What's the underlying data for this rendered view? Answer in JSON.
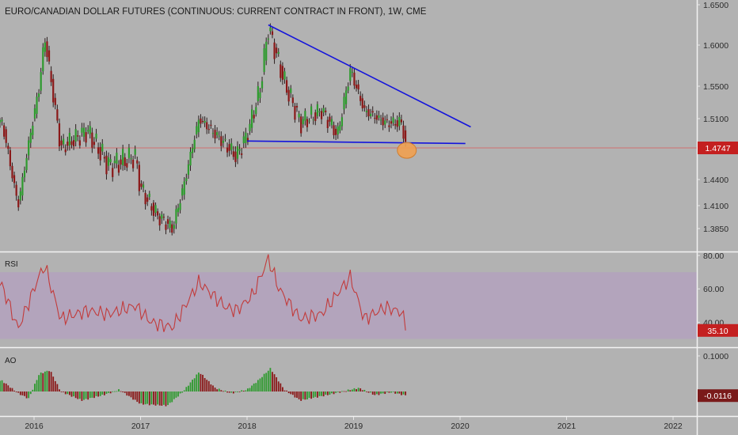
{
  "chart_data": {
    "type": "candlestick",
    "title": "EURO/CANADIAN DOLLAR FUTURES (CONTINUOUS: CURRENT CONTRACT IN FRONT), 1W, CME",
    "x_ticks": [
      "2016",
      "2017",
      "2018",
      "2019",
      "2020",
      "2021",
      "2022"
    ],
    "price": {
      "y_ticks": [
        "1.6500",
        "1.6000",
        "1.5500",
        "1.5100",
        "1.4400",
        "1.4100",
        "1.3850"
      ],
      "last_value": "1.4747",
      "key_points": [
        {
          "date": "2015.7",
          "value": 1.505
        },
        {
          "date": "2015.85",
          "value": 1.41
        },
        {
          "date": "2016.05",
          "value": 1.55
        },
        {
          "date": "2016.1",
          "value": 1.61
        },
        {
          "date": "2016.25",
          "value": 1.475
        },
        {
          "date": "2016.5",
          "value": 1.495
        },
        {
          "date": "2016.7",
          "value": 1.455
        },
        {
          "date": "2016.95",
          "value": 1.465
        },
        {
          "date": "2017.0",
          "value": 1.43
        },
        {
          "date": "2017.15",
          "value": 1.4
        },
        {
          "date": "2017.3",
          "value": 1.385
        },
        {
          "date": "2017.4",
          "value": 1.43
        },
        {
          "date": "2017.55",
          "value": 1.51
        },
        {
          "date": "2017.75",
          "value": 1.485
        },
        {
          "date": "2017.9",
          "value": 1.465
        },
        {
          "date": "2018.0",
          "value": 1.49
        },
        {
          "date": "2018.12",
          "value": 1.545
        },
        {
          "date": "2018.2",
          "value": 1.622
        },
        {
          "date": "2018.35",
          "value": 1.555
        },
        {
          "date": "2018.5",
          "value": 1.505
        },
        {
          "date": "2018.7",
          "value": 1.52
        },
        {
          "date": "2018.85",
          "value": 1.49
        },
        {
          "date": "2018.97",
          "value": 1.57
        },
        {
          "date": "2019.1",
          "value": 1.52
        },
        {
          "date": "2019.3",
          "value": 1.505
        },
        {
          "date": "2019.45",
          "value": 1.505
        },
        {
          "date": "2019.5",
          "value": 1.4747
        }
      ],
      "trend_lines": [
        {
          "name": "resistance",
          "from": {
            "date": "2018.2",
            "value": 1.625
          },
          "to": {
            "date": "2020.1",
            "value": 1.5
          }
        },
        {
          "name": "support",
          "from": {
            "date": "2018.0",
            "value": 1.483
          },
          "to": {
            "date": "2020.05",
            "value": 1.48
          }
        }
      ],
      "highlight": {
        "date": "2019.5",
        "value": 1.472
      }
    },
    "rsi": {
      "label": "RSI",
      "y_ticks": [
        "80.00",
        "60.00",
        "40.00"
      ],
      "band": [
        30,
        70
      ],
      "last_value": "35.10",
      "key_points": [
        {
          "date": "2015.7",
          "value": 62
        },
        {
          "date": "2015.85",
          "value": 36
        },
        {
          "date": "2016.05",
          "value": 68
        },
        {
          "date": "2016.1",
          "value": 74
        },
        {
          "date": "2016.25",
          "value": 42
        },
        {
          "date": "2016.5",
          "value": 47
        },
        {
          "date": "2016.7",
          "value": 45
        },
        {
          "date": "2016.95",
          "value": 50
        },
        {
          "date": "2017.1",
          "value": 40
        },
        {
          "date": "2017.3",
          "value": 37
        },
        {
          "date": "2017.55",
          "value": 64
        },
        {
          "date": "2017.8",
          "value": 49
        },
        {
          "date": "2017.9",
          "value": 47
        },
        {
          "date": "2018.05",
          "value": 56
        },
        {
          "date": "2018.2",
          "value": 78
        },
        {
          "date": "2018.3",
          "value": 60
        },
        {
          "date": "2018.5",
          "value": 42
        },
        {
          "date": "2018.7",
          "value": 45
        },
        {
          "date": "2018.97",
          "value": 67
        },
        {
          "date": "2019.1",
          "value": 42
        },
        {
          "date": "2019.3",
          "value": 49
        },
        {
          "date": "2019.45",
          "value": 46
        },
        {
          "date": "2019.5",
          "value": 35.1
        }
      ]
    },
    "ao": {
      "label": "AO",
      "y_ticks": [
        "0.1000"
      ],
      "last_value": "-0.0116",
      "key_points": [
        {
          "date": "2015.7",
          "value": 0.03
        },
        {
          "date": "2015.85",
          "value": -0.005
        },
        {
          "date": "2015.95",
          "value": -0.02
        },
        {
          "date": "2016.05",
          "value": 0.05
        },
        {
          "date": "2016.15",
          "value": 0.06
        },
        {
          "date": "2016.25",
          "value": 0.0
        },
        {
          "date": "2016.45",
          "value": -0.025
        },
        {
          "date": "2016.65",
          "value": -0.01
        },
        {
          "date": "2016.8",
          "value": 0.005
        },
        {
          "date": "2017.0",
          "value": -0.035
        },
        {
          "date": "2017.25",
          "value": -0.04
        },
        {
          "date": "2017.4",
          "value": 0.0
        },
        {
          "date": "2017.55",
          "value": 0.055
        },
        {
          "date": "2017.7",
          "value": 0.01
        },
        {
          "date": "2017.85",
          "value": -0.005
        },
        {
          "date": "2018.0",
          "value": 0.005
        },
        {
          "date": "2018.1",
          "value": 0.03
        },
        {
          "date": "2018.22",
          "value": 0.065
        },
        {
          "date": "2018.35",
          "value": 0.005
        },
        {
          "date": "2018.5",
          "value": -0.025
        },
        {
          "date": "2018.75",
          "value": -0.01
        },
        {
          "date": "2018.97",
          "value": 0.005
        },
        {
          "date": "2019.05",
          "value": 0.01
        },
        {
          "date": "2019.2",
          "value": -0.01
        },
        {
          "date": "2019.35",
          "value": -0.002
        },
        {
          "date": "2019.5",
          "value": -0.0116
        }
      ]
    },
    "colors": {
      "background": "#b2b2b2",
      "up": "#2e9a2e",
      "down": "#8a1818",
      "wick": "#2b1f1f",
      "trend_line": "#1414dc",
      "highlight_fill": "#f0a050",
      "price_line": "#d07070",
      "price_tag": "#c42020",
      "rsi_line": "#c23b3b",
      "rsi_band": "#b3a4bc",
      "rsi_tag": "#c42020",
      "ao_tag": "#7a1a1a",
      "separator": "#f2f2f2"
    }
  }
}
